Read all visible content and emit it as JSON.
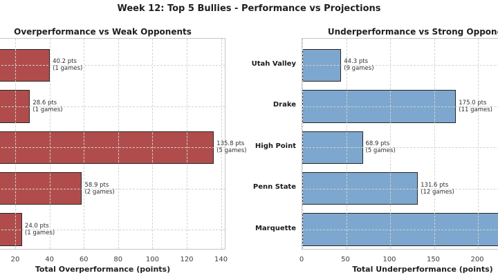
{
  "figure": {
    "title": "Week 12: Top 5 Bullies - Performance vs Projections"
  },
  "chart_data": [
    {
      "type": "bar",
      "orientation": "horizontal",
      "title": "Overperformance vs Weak Opponents",
      "xlabel": "Total Overperformance (points)",
      "x_ticks": [
        20,
        40,
        60,
        80,
        100,
        120,
        140
      ],
      "grid": "dashed",
      "bar_color": "#b04d4c",
      "bar_edge_color": "#262626",
      "categories_visible": false,
      "bars": [
        {
          "value": 40.2,
          "games": 1,
          "label_line1": "40.2 pts",
          "label_line2": "(1 games)"
        },
        {
          "value": 28.6,
          "games": 1,
          "label_line1": "28.6 pts",
          "label_line2": "(1 games)"
        },
        {
          "value": 135.8,
          "games": 5,
          "label_line1": "135.8 pts",
          "label_line2": "(5 games)"
        },
        {
          "value": 58.9,
          "games": 2,
          "label_line1": "58.9 pts",
          "label_line2": "(2 games)"
        },
        {
          "value": 24.0,
          "games": 1,
          "label_line1": "24.0 pts",
          "label_line2": "(1 games)"
        }
      ]
    },
    {
      "type": "bar",
      "orientation": "horizontal",
      "title": "Underperformance vs Strong Opponents",
      "xlabel": "Total Underperformance (points)",
      "x_ticks": [
        0,
        50,
        100,
        150,
        200
      ],
      "grid": "dashed",
      "bar_color": "#7da7ce",
      "bar_edge_color": "#262626",
      "categories": [
        "Utah Valley",
        "Drake",
        "High Point",
        "Penn State",
        "Marquette"
      ],
      "bars": [
        {
          "value": 44.3,
          "games": 9,
          "label_line1": "44.3 pts",
          "label_line2": "(9 games)"
        },
        {
          "value": 175.0,
          "games": 11,
          "label_line1": "175.0 pts",
          "label_line2": "(11 games)"
        },
        {
          "value": 68.9,
          "games": 5,
          "label_line1": "68.9 pts",
          "label_line2": "(5 games)"
        },
        {
          "value": 131.6,
          "games": 12,
          "label_line1": "131.6 pts",
          "label_line2": "(12 games)"
        },
        {
          "value": null,
          "cut_off": true
        }
      ]
    }
  ]
}
